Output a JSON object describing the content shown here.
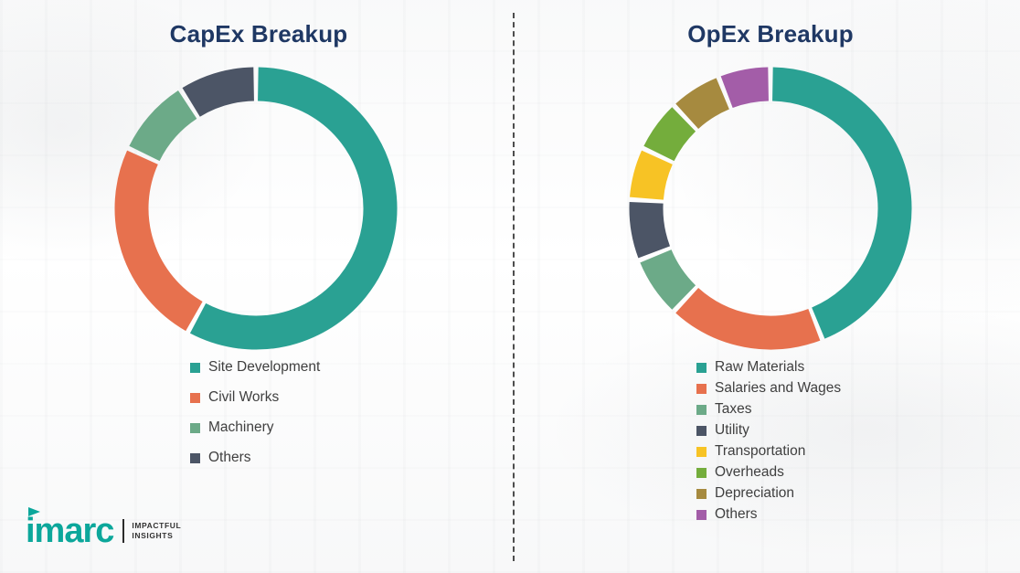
{
  "page": {
    "background": "#FFFFFF",
    "title_color": "#1F3864",
    "separator_color": "#4D4D4D"
  },
  "chart_data": [
    {
      "type": "pie",
      "subtype": "donut",
      "title": "CapEx Breakup",
      "labels": [
        "Site Development",
        "Civil Works",
        "Machinery",
        "Others"
      ],
      "values": [
        58,
        24,
        9,
        9
      ],
      "unit": "percent-estimated",
      "colors": [
        "#2AA193",
        "#E7714E",
        "#6CAA88",
        "#4C5566"
      ],
      "legend_position": "bottom",
      "data_labels": false,
      "start_angle_deg": 0,
      "direction": "clockwise"
    },
    {
      "type": "pie",
      "subtype": "donut",
      "title": "OpEx Breakup",
      "labels": [
        "Raw Materials",
        "Salaries and Wages",
        "Taxes",
        "Utility",
        "Transportation",
        "Overheads",
        "Depreciation",
        "Others"
      ],
      "values": [
        44,
        18,
        7,
        7,
        6,
        6,
        6,
        6
      ],
      "unit": "percent-estimated",
      "colors": [
        "#2AA193",
        "#E7714E",
        "#6CAA88",
        "#4C5566",
        "#F7C325",
        "#74AD3C",
        "#A68A3F",
        "#A35DA8"
      ],
      "legend_position": "bottom",
      "data_labels": false,
      "start_angle_deg": 0,
      "direction": "clockwise"
    }
  ],
  "branding": {
    "logo_text": "imarc",
    "tagline_line1": "IMPACTFUL",
    "tagline_line2": "INSIGHTS",
    "color": "#0CA79B"
  }
}
